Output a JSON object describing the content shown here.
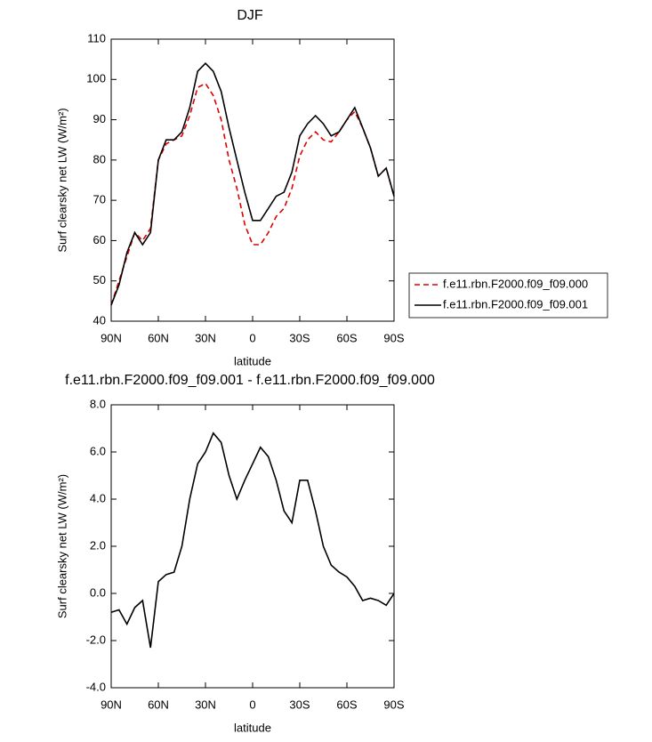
{
  "chart_data": [
    {
      "type": "line",
      "title": "DJF",
      "xlabel": "latitude",
      "ylabel": "Surf clearsky net LW (W/m²)",
      "x": [
        90,
        85,
        80,
        75,
        70,
        65,
        60,
        55,
        50,
        45,
        40,
        35,
        30,
        25,
        20,
        15,
        10,
        5,
        0,
        -5,
        -10,
        -15,
        -20,
        -25,
        -30,
        -35,
        -40,
        -45,
        -50,
        -55,
        -60,
        -65,
        -70,
        -75,
        -80,
        -85,
        -90
      ],
      "series": [
        {
          "name": "f.e11.rbn.F2000.f09_f09.000",
          "color": "#e00000",
          "linestyle": "dashed",
          "values": [
            44,
            50,
            56,
            62,
            60,
            63,
            80,
            84,
            85,
            86,
            91,
            98,
            99,
            96,
            90,
            80,
            73,
            64,
            59,
            59,
            62,
            66,
            68,
            73,
            81,
            85,
            87,
            85,
            84.5,
            87,
            90,
            92,
            88,
            83,
            76,
            78,
            71
          ]
        },
        {
          "name": "f.e11.rbn.F2000.f09_f09.001",
          "color": "#000000",
          "linestyle": "solid",
          "values": [
            44,
            49,
            57,
            62,
            59,
            62,
            80,
            85,
            85,
            87,
            93,
            102,
            104,
            102,
            97,
            88,
            80,
            72,
            65,
            65,
            68,
            71,
            72,
            77,
            86,
            89,
            91,
            89,
            86,
            87,
            90,
            93,
            88,
            83,
            76,
            78,
            71
          ]
        }
      ],
      "xlim": [
        90,
        -90
      ],
      "xticks": [
        {
          "value": 90,
          "label": "90N"
        },
        {
          "value": 60,
          "label": "60N"
        },
        {
          "value": 30,
          "label": "30N"
        },
        0,
        {
          "value": -30,
          "label": "30S"
        },
        {
          "value": -60,
          "label": "60S"
        },
        {
          "value": -90,
          "label": "90S"
        }
      ],
      "ylim": [
        40,
        110
      ],
      "yticks": [
        40,
        50,
        60,
        70,
        80,
        90,
        100,
        110
      ],
      "legend": "right"
    },
    {
      "type": "line",
      "title": "f.e11.rbn.F2000.f09_f09.001 - f.e11.rbn.F2000.f09_f09.000",
      "xlabel": "latitude",
      "ylabel": "Surf clearsky net LW (W/m²)",
      "x": [
        90,
        85,
        80,
        75,
        70,
        65,
        60,
        55,
        50,
        45,
        40,
        35,
        30,
        25,
        20,
        15,
        10,
        5,
        0,
        -5,
        -10,
        -15,
        -20,
        -25,
        -30,
        -35,
        -40,
        -45,
        -50,
        -55,
        -60,
        -65,
        -70,
        -75,
        -80,
        -85,
        -90
      ],
      "series": [
        {
          "color": "#000000",
          "linestyle": "solid",
          "values": [
            -0.8,
            -0.7,
            -1.3,
            -0.6,
            -0.3,
            -2.3,
            0.5,
            0.8,
            0.9,
            2.0,
            4.0,
            5.5,
            6.0,
            6.8,
            6.4,
            5.0,
            4.0,
            4.8,
            5.5,
            6.2,
            5.8,
            4.8,
            3.5,
            3.0,
            4.8,
            4.8,
            3.5,
            2.0,
            1.2,
            0.9,
            0.7,
            0.3,
            -0.3,
            -0.2,
            -0.3,
            -0.5,
            0.0
          ]
        }
      ],
      "xlim": [
        90,
        -90
      ],
      "xticks": [
        {
          "value": 90,
          "label": "90N"
        },
        {
          "value": 60,
          "label": "60N"
        },
        {
          "value": 30,
          "label": "30N"
        },
        0,
        {
          "value": -30,
          "label": "30S"
        },
        {
          "value": -60,
          "label": "60S"
        },
        {
          "value": -90,
          "label": "90S"
        }
      ],
      "ylim": [
        -4,
        8
      ],
      "yticks": [
        {
          "value": -4,
          "label": "-4.0"
        },
        {
          "value": -2,
          "label": "-2.0"
        },
        {
          "value": 0,
          "label": "0.0"
        },
        {
          "value": 2,
          "label": "2.0"
        },
        {
          "value": 4,
          "label": "4.0"
        },
        {
          "value": 6,
          "label": "6.0"
        },
        {
          "value": 8,
          "label": "8.0"
        }
      ]
    }
  ]
}
